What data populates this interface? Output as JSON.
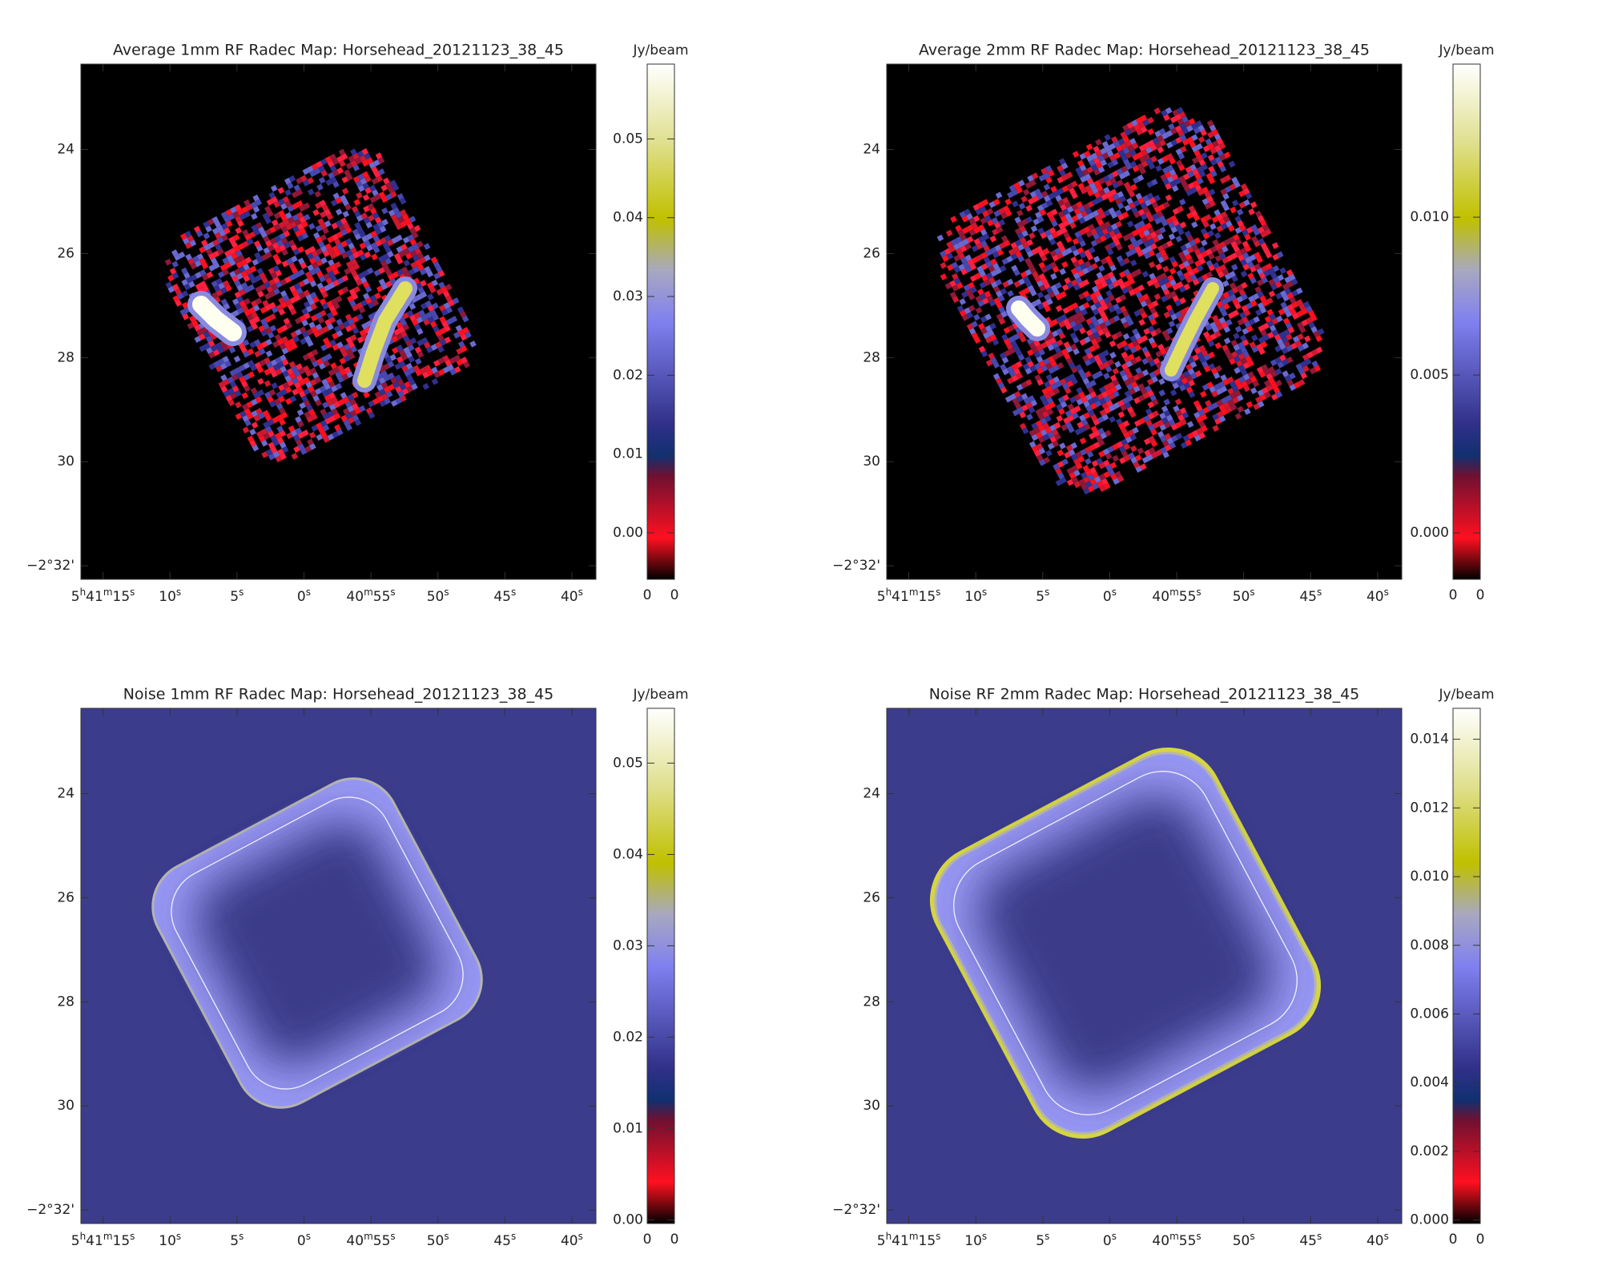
{
  "chart_data": [
    {
      "type": "map",
      "title": "Average 1mm RF Radec Map: Horsehead_20121123_38_45",
      "colorbar_label": "Jy/beam",
      "colorbar_lim": [
        -0.0059,
        0.0595
      ],
      "colorbar_ticks": [
        {
          "value": 0,
          "label": "0.00"
        },
        0.01,
        0.02,
        0.03,
        0.04,
        0.05
      ],
      "colorbar_end_labels": [
        "0",
        "0"
      ],
      "xlim": [
        16.65,
        -21.8
      ],
      "xticks": [
        {
          "value": 15,
          "label": [
            "5",
            "h",
            "41",
            "m",
            "15",
            "s"
          ]
        },
        {
          "value": 10,
          "label": [
            "10",
            "s"
          ]
        },
        {
          "value": 5,
          "label": [
            "5",
            "s"
          ]
        },
        {
          "value": 0,
          "label": [
            "0",
            "s"
          ]
        },
        {
          "value": -5,
          "label": [
            "40",
            "m",
            "55",
            "s"
          ]
        },
        {
          "value": -10,
          "label": [
            "50",
            "s"
          ]
        },
        {
          "value": -15,
          "label": [
            "45",
            "s"
          ]
        },
        {
          "value": -20,
          "label": [
            "40",
            "s"
          ]
        }
      ],
      "ylim": [
        22.36,
        32.26
      ],
      "yticks": [
        24,
        26,
        28,
        30,
        {
          "value": 32,
          "label": "−2°32'"
        }
      ]
    },
    {
      "type": "map",
      "title": "Average 2mm RF Radec Map: Horsehead_20121123_38_45",
      "colorbar_label": "Jy/beam",
      "colorbar_lim": [
        -0.00147,
        0.01485
      ],
      "colorbar_ticks": [
        {
          "value": 0,
          "label": "0.000"
        },
        0.005,
        {
          "value": 0.01,
          "label": "0.010"
        }
      ],
      "colorbar_end_labels": [
        "0",
        "0"
      ],
      "xlim": [
        16.65,
        -21.8
      ],
      "xticks": [
        {
          "value": 15,
          "label": [
            "5",
            "h",
            "41",
            "m",
            "15",
            "s"
          ]
        },
        {
          "value": 10,
          "label": [
            "10",
            "s"
          ]
        },
        {
          "value": 5,
          "label": [
            "5",
            "s"
          ]
        },
        {
          "value": 0,
          "label": [
            "0",
            "s"
          ]
        },
        {
          "value": -5,
          "label": [
            "40",
            "m",
            "55",
            "s"
          ]
        },
        {
          "value": -10,
          "label": [
            "50",
            "s"
          ]
        },
        {
          "value": -15,
          "label": [
            "45",
            "s"
          ]
        },
        {
          "value": -20,
          "label": [
            "40",
            "s"
          ]
        }
      ],
      "ylim": [
        22.36,
        32.26
      ],
      "yticks": [
        24,
        26,
        28,
        30,
        {
          "value": 32,
          "label": "−2°32'"
        }
      ]
    },
    {
      "type": "map",
      "title": "Noise 1mm RF Radec Map: Horsehead_20121123_38_45",
      "colorbar_label": "Jy/beam",
      "colorbar_lim": [
        -0.0004,
        0.056
      ],
      "colorbar_ticks": [
        {
          "value": 0,
          "label": "0.00"
        },
        0.01,
        0.02,
        0.03,
        0.04,
        0.05
      ],
      "colorbar_end_labels": [
        "0",
        "0"
      ],
      "xlim": [
        16.65,
        -21.8
      ],
      "xticks": [
        {
          "value": 15,
          "label": [
            "5",
            "h",
            "41",
            "m",
            "15",
            "s"
          ]
        },
        {
          "value": 10,
          "label": [
            "10",
            "s"
          ]
        },
        {
          "value": 5,
          "label": [
            "5",
            "s"
          ]
        },
        {
          "value": 0,
          "label": [
            "0",
            "s"
          ]
        },
        {
          "value": -5,
          "label": [
            "40",
            "m",
            "55",
            "s"
          ]
        },
        {
          "value": -10,
          "label": [
            "50",
            "s"
          ]
        },
        {
          "value": -15,
          "label": [
            "45",
            "s"
          ]
        },
        {
          "value": -20,
          "label": [
            "40",
            "s"
          ]
        }
      ],
      "ylim": [
        22.36,
        32.26
      ],
      "yticks": [
        24,
        26,
        28,
        30,
        {
          "value": 32,
          "label": "−2°32'"
        }
      ]
    },
    {
      "type": "map",
      "title": "Noise RF 2mm Radec Map: Horsehead_20121123_38_45",
      "colorbar_label": "Jy/beam",
      "colorbar_lim": [
        -0.0001,
        0.0149
      ],
      "colorbar_ticks": [
        {
          "value": 0,
          "label": "0.000"
        },
        0.002,
        0.004,
        0.006,
        0.008,
        {
          "value": 0.01,
          "label": "0.010"
        },
        0.012,
        0.014
      ],
      "colorbar_end_labels": [
        "0",
        "0"
      ],
      "xlim": [
        16.65,
        -21.8
      ],
      "xticks": [
        {
          "value": 15,
          "label": [
            "5",
            "h",
            "41",
            "m",
            "15",
            "s"
          ]
        },
        {
          "value": 10,
          "label": [
            "10",
            "s"
          ]
        },
        {
          "value": 5,
          "label": [
            "5",
            "s"
          ]
        },
        {
          "value": 0,
          "label": [
            "0",
            "s"
          ]
        },
        {
          "value": -5,
          "label": [
            "40",
            "m",
            "55",
            "s"
          ]
        },
        {
          "value": -10,
          "label": [
            "50",
            "s"
          ]
        },
        {
          "value": -15,
          "label": [
            "45",
            "s"
          ]
        },
        {
          "value": -20,
          "label": [
            "40",
            "s"
          ]
        }
      ],
      "ylim": [
        22.36,
        32.26
      ],
      "yticks": [
        24,
        26,
        28,
        30,
        {
          "value": 32,
          "label": "−2°32'"
        }
      ]
    }
  ]
}
